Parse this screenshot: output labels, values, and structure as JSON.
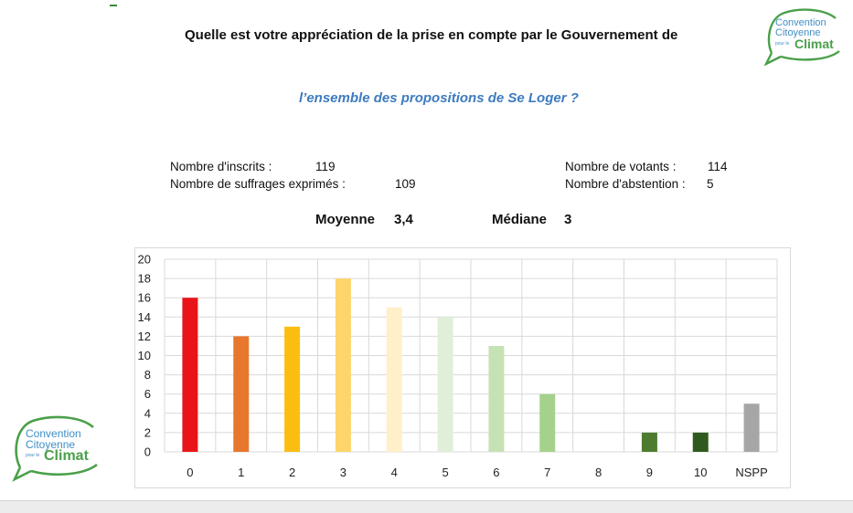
{
  "header": {
    "title_line1": "Quelle est votre appréciation de la prise en compte par le Gouvernement de",
    "title_line2": "l’ensemble des propositions de Se Loger ?"
  },
  "logo": {
    "line1": "Convention",
    "line2": "Citoyenne",
    "small": "pour le",
    "line3": "Climat",
    "colors": {
      "blue": "#3f8ec5",
      "green": "#4aa04a"
    }
  },
  "stats": {
    "inscrits_label": "Nombre d'inscrits :",
    "inscrits_value": "119",
    "suffrages_label": "Nombre de suffrages exprimés :",
    "suffrages_value": "109",
    "votants_label": "Nombre de votants :",
    "votants_value": "114",
    "abstention_label": "Nombre d'abstention :",
    "abstention_value": "5"
  },
  "summary": {
    "moyenne_label": "Moyenne",
    "moyenne_value": "3,4",
    "mediane_label": "Médiane",
    "mediane_value": "3"
  },
  "chart_data": {
    "type": "bar",
    "categories": [
      "0",
      "1",
      "2",
      "3",
      "4",
      "5",
      "6",
      "7",
      "8",
      "9",
      "10",
      "NSPP"
    ],
    "values": [
      16,
      12,
      13,
      18,
      15,
      14,
      11,
      6,
      0,
      2,
      2,
      5
    ],
    "colors": [
      "#e8141a",
      "#e8772e",
      "#fbbe10",
      "#fdd56a",
      "#fff0c8",
      "#e1efd8",
      "#c6e2b4",
      "#a5d18c",
      "#7aa85a",
      "#4d7c2f",
      "#2f5a1e",
      "#a6a6a6"
    ],
    "ylim": [
      0,
      20
    ],
    "yticks": [
      0,
      2,
      4,
      6,
      8,
      10,
      12,
      14,
      16,
      18,
      20
    ],
    "grid": true,
    "title": "",
    "xlabel": "",
    "ylabel": ""
  }
}
